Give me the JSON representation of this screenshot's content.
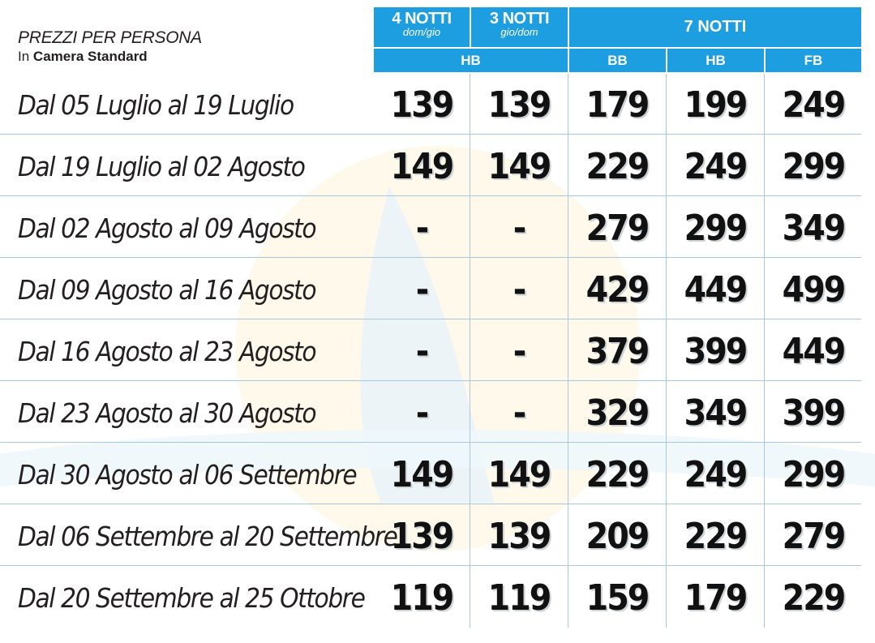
{
  "caption": {
    "line1": "PREZZI PER PERSONA",
    "line2_prefix": "In",
    "line2_bold": "Camera Standard"
  },
  "header": {
    "col1_title": "4 NOTTI",
    "col1_sub": "dom/gio",
    "col2_title": "3 NOTTI",
    "col2_sub": "gio/dom",
    "group_title": "7 NOTTI",
    "hb_short_stays": "HB",
    "bb": "BB",
    "hb": "HB",
    "fb": "FB"
  },
  "rows": [
    {
      "period": "Dal 05 Luglio al 19 Luglio",
      "n4": "139",
      "n3": "139",
      "bb": "179",
      "hb": "199",
      "fb": "249"
    },
    {
      "period": "Dal 19 Luglio al 02 Agosto",
      "n4": "149",
      "n3": "149",
      "bb": "229",
      "hb": "249",
      "fb": "299"
    },
    {
      "period": "Dal 02 Agosto al 09 Agosto",
      "n4": "-",
      "n3": "-",
      "bb": "279",
      "hb": "299",
      "fb": "349"
    },
    {
      "period": "Dal 09 Agosto al 16 Agosto",
      "n4": "-",
      "n3": "-",
      "bb": "429",
      "hb": "449",
      "fb": "499"
    },
    {
      "period": "Dal 16 Agosto al 23 Agosto",
      "n4": "-",
      "n3": "-",
      "bb": "379",
      "hb": "399",
      "fb": "449"
    },
    {
      "period": "Dal 23 Agosto al 30 Agosto",
      "n4": "-",
      "n3": "-",
      "bb": "329",
      "hb": "349",
      "fb": "399"
    },
    {
      "period": "Dal 30 Agosto al 06 Settembre",
      "n4": "149",
      "n3": "149",
      "bb": "229",
      "hb": "249",
      "fb": "299"
    },
    {
      "period": "Dal 06 Settembre al 20 Settembre",
      "n4": "139",
      "n3": "139",
      "bb": "209",
      "hb": "229",
      "fb": "279"
    },
    {
      "period": "Dal 20 Settembre al 25 Ottobre",
      "n4": "119",
      "n3": "119",
      "bb": "159",
      "hb": "179",
      "fb": "229"
    }
  ],
  "colors": {
    "header_blue": "#1d9ee1",
    "grid_line": "#a9c8de",
    "text": "#231f20"
  }
}
